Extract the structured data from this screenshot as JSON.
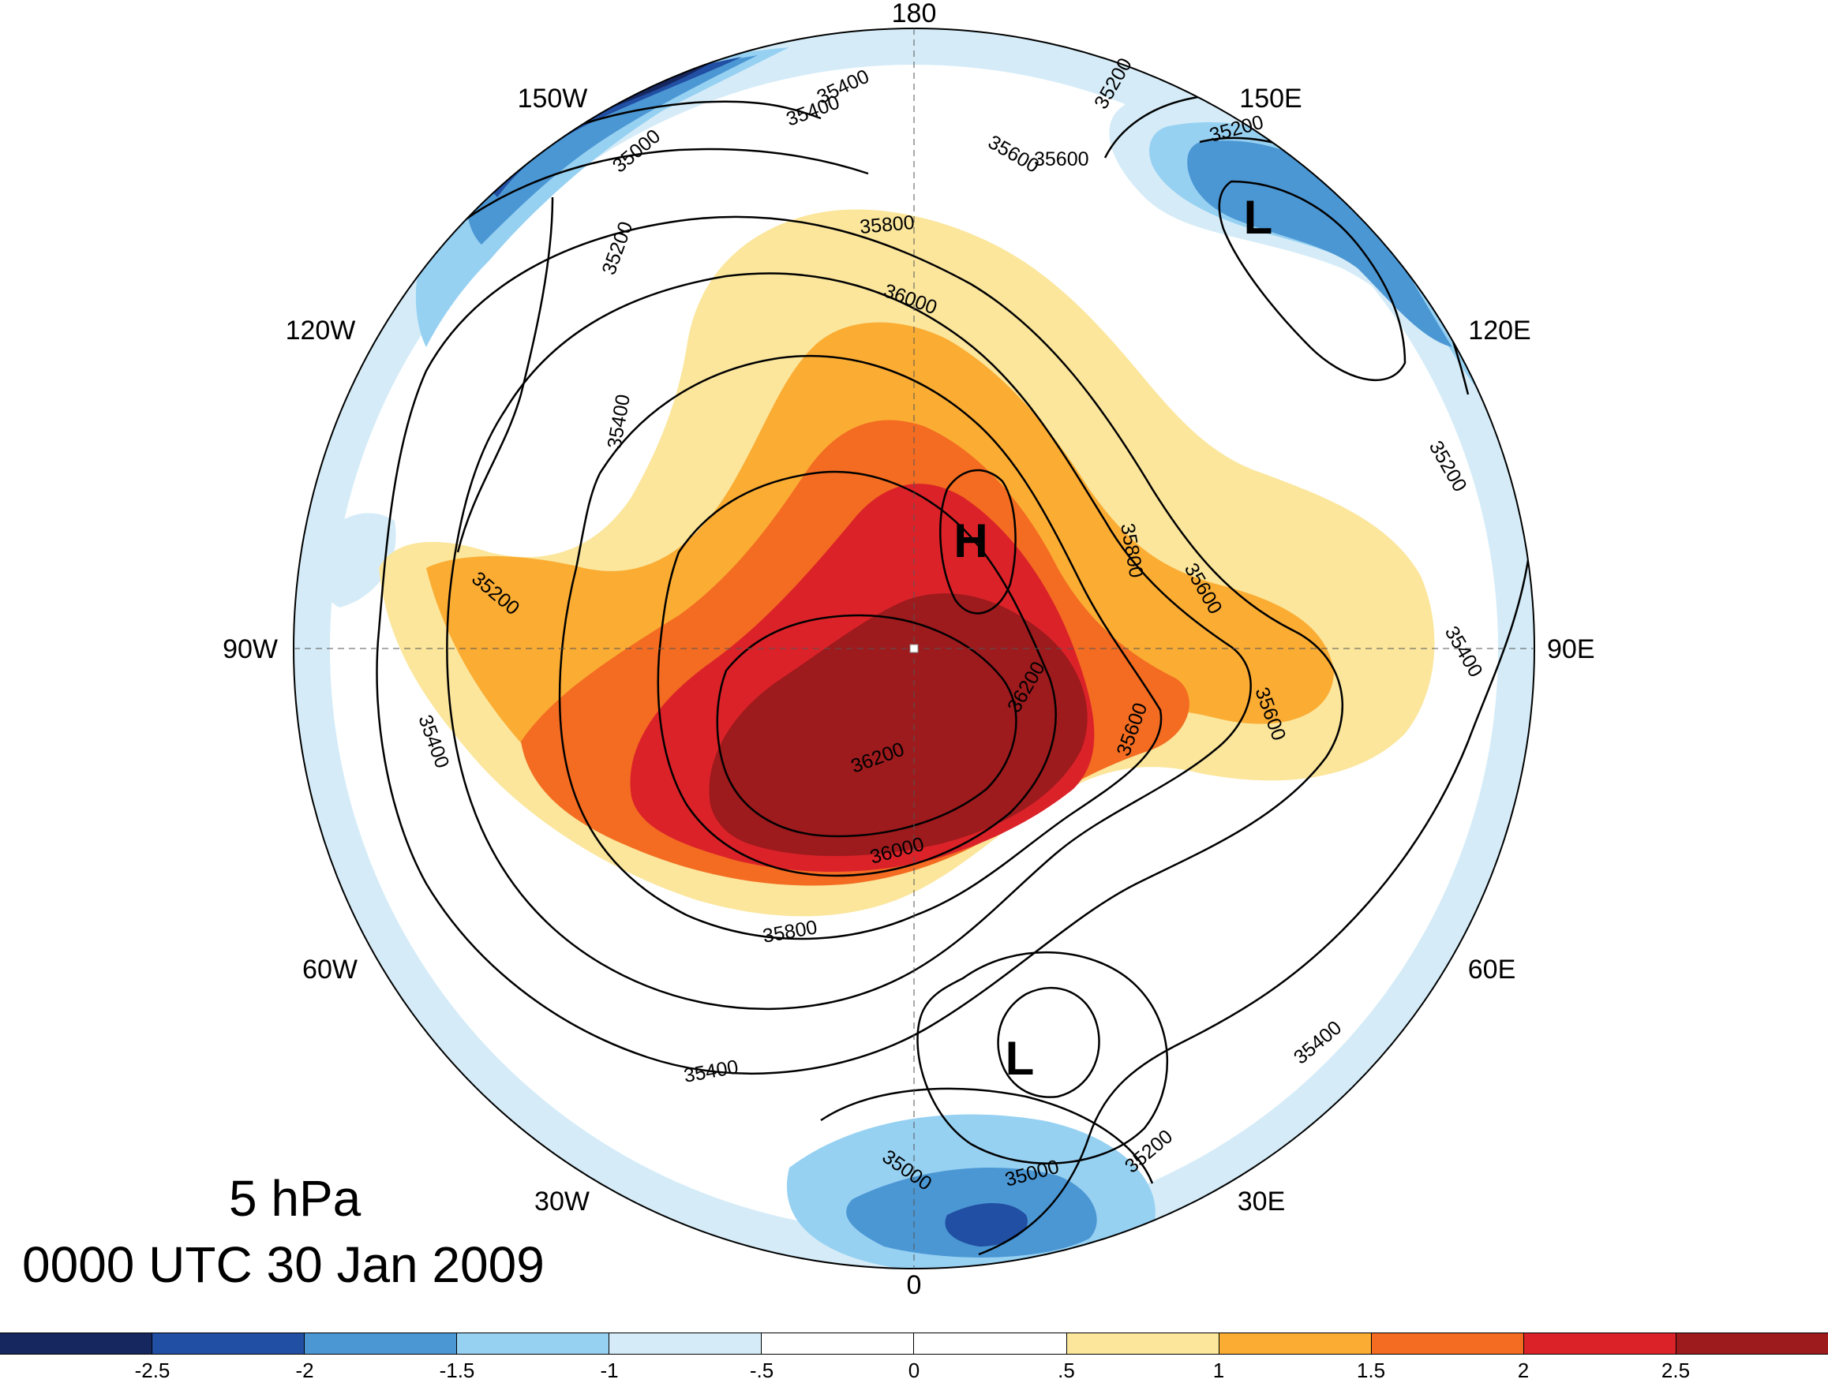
{
  "title": {
    "level": "5 hPa",
    "time": "0000 UTC 30 Jan 2009"
  },
  "longitude_labels": [
    "180",
    "150E",
    "120E",
    "90E",
    "60E",
    "30E",
    "0",
    "30W",
    "60W",
    "90W",
    "120W",
    "150W"
  ],
  "centers": [
    {
      "label": "H",
      "type": "high"
    },
    {
      "label": "L",
      "type": "low"
    },
    {
      "label": "L",
      "type": "low"
    }
  ],
  "contour_labels": [
    "35000",
    "35200",
    "35400",
    "35600",
    "35800",
    "36000",
    "36200"
  ],
  "contour_label_instances": [
    "35400",
    "35400",
    "35000",
    "35200",
    "35600",
    "35800",
    "36000",
    "35400",
    "35200",
    "35400",
    "35200",
    "35600",
    "35800",
    "35600",
    "35400",
    "36200",
    "36200",
    "35600",
    "36000",
    "35600",
    "35800",
    "35400",
    "35400",
    "35000",
    "35000",
    "35200",
    "35200",
    "35200"
  ],
  "colorbar": {
    "tick_labels": [
      "-2.5",
      "-2",
      "-1.5",
      "-1",
      "-.5",
      "0",
      ".5",
      "1",
      "1.5",
      "2",
      "2.5"
    ],
    "colors": [
      "#16275f",
      "#214fa3",
      "#4b97d4",
      "#97d1f2",
      "#d5ecf8",
      "#ffffff",
      "#ffffff",
      "#fbe69c",
      "#fbac33",
      "#f36c21",
      "#db2229",
      "#9d1a1d"
    ]
  }
}
